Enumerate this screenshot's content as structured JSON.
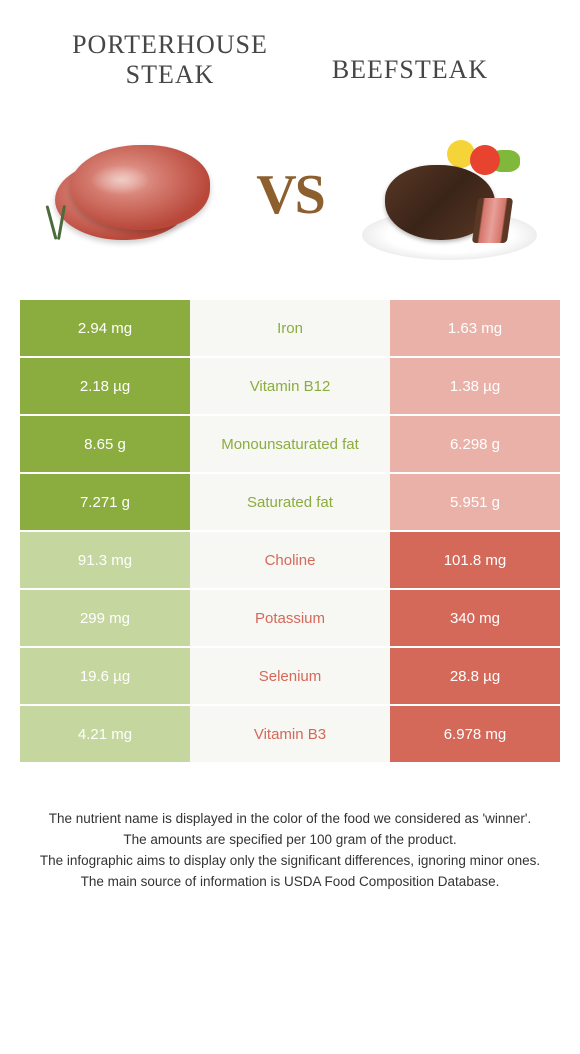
{
  "header": {
    "left_title": "Porterhouse steak",
    "right_title": "Beefsteak",
    "vs_label": "VS"
  },
  "colors": {
    "left_win": "#8bad3f",
    "left_lose": "#c5d69f",
    "right_win": "#d4695a",
    "right_lose": "#e9b1a8",
    "mid_bg": "#f7f7f3"
  },
  "rows": [
    {
      "left": "2.94 mg",
      "name": "Iron",
      "right": "1.63 mg",
      "winner": "l"
    },
    {
      "left": "2.18 µg",
      "name": "Vitamin B12",
      "right": "1.38 µg",
      "winner": "l"
    },
    {
      "left": "8.65 g",
      "name": "Monounsaturated fat",
      "right": "6.298 g",
      "winner": "l"
    },
    {
      "left": "7.271 g",
      "name": "Saturated fat",
      "right": "5.951 g",
      "winner": "l"
    },
    {
      "left": "91.3 mg",
      "name": "Choline",
      "right": "101.8 mg",
      "winner": "r"
    },
    {
      "left": "299 mg",
      "name": "Potassium",
      "right": "340 mg",
      "winner": "r"
    },
    {
      "left": "19.6 µg",
      "name": "Selenium",
      "right": "28.8 µg",
      "winner": "r"
    },
    {
      "left": "4.21 mg",
      "name": "Vitamin B3",
      "right": "6.978 mg",
      "winner": "r"
    }
  ],
  "footer": {
    "line1": "The nutrient name is displayed in the color of the food we considered as 'winner'.",
    "line2": "The amounts are specified per 100 gram of the product.",
    "line3": "The infographic aims to display only the significant differences, ignoring minor ones.",
    "line4": "The main source of information is USDA Food Composition Database."
  }
}
